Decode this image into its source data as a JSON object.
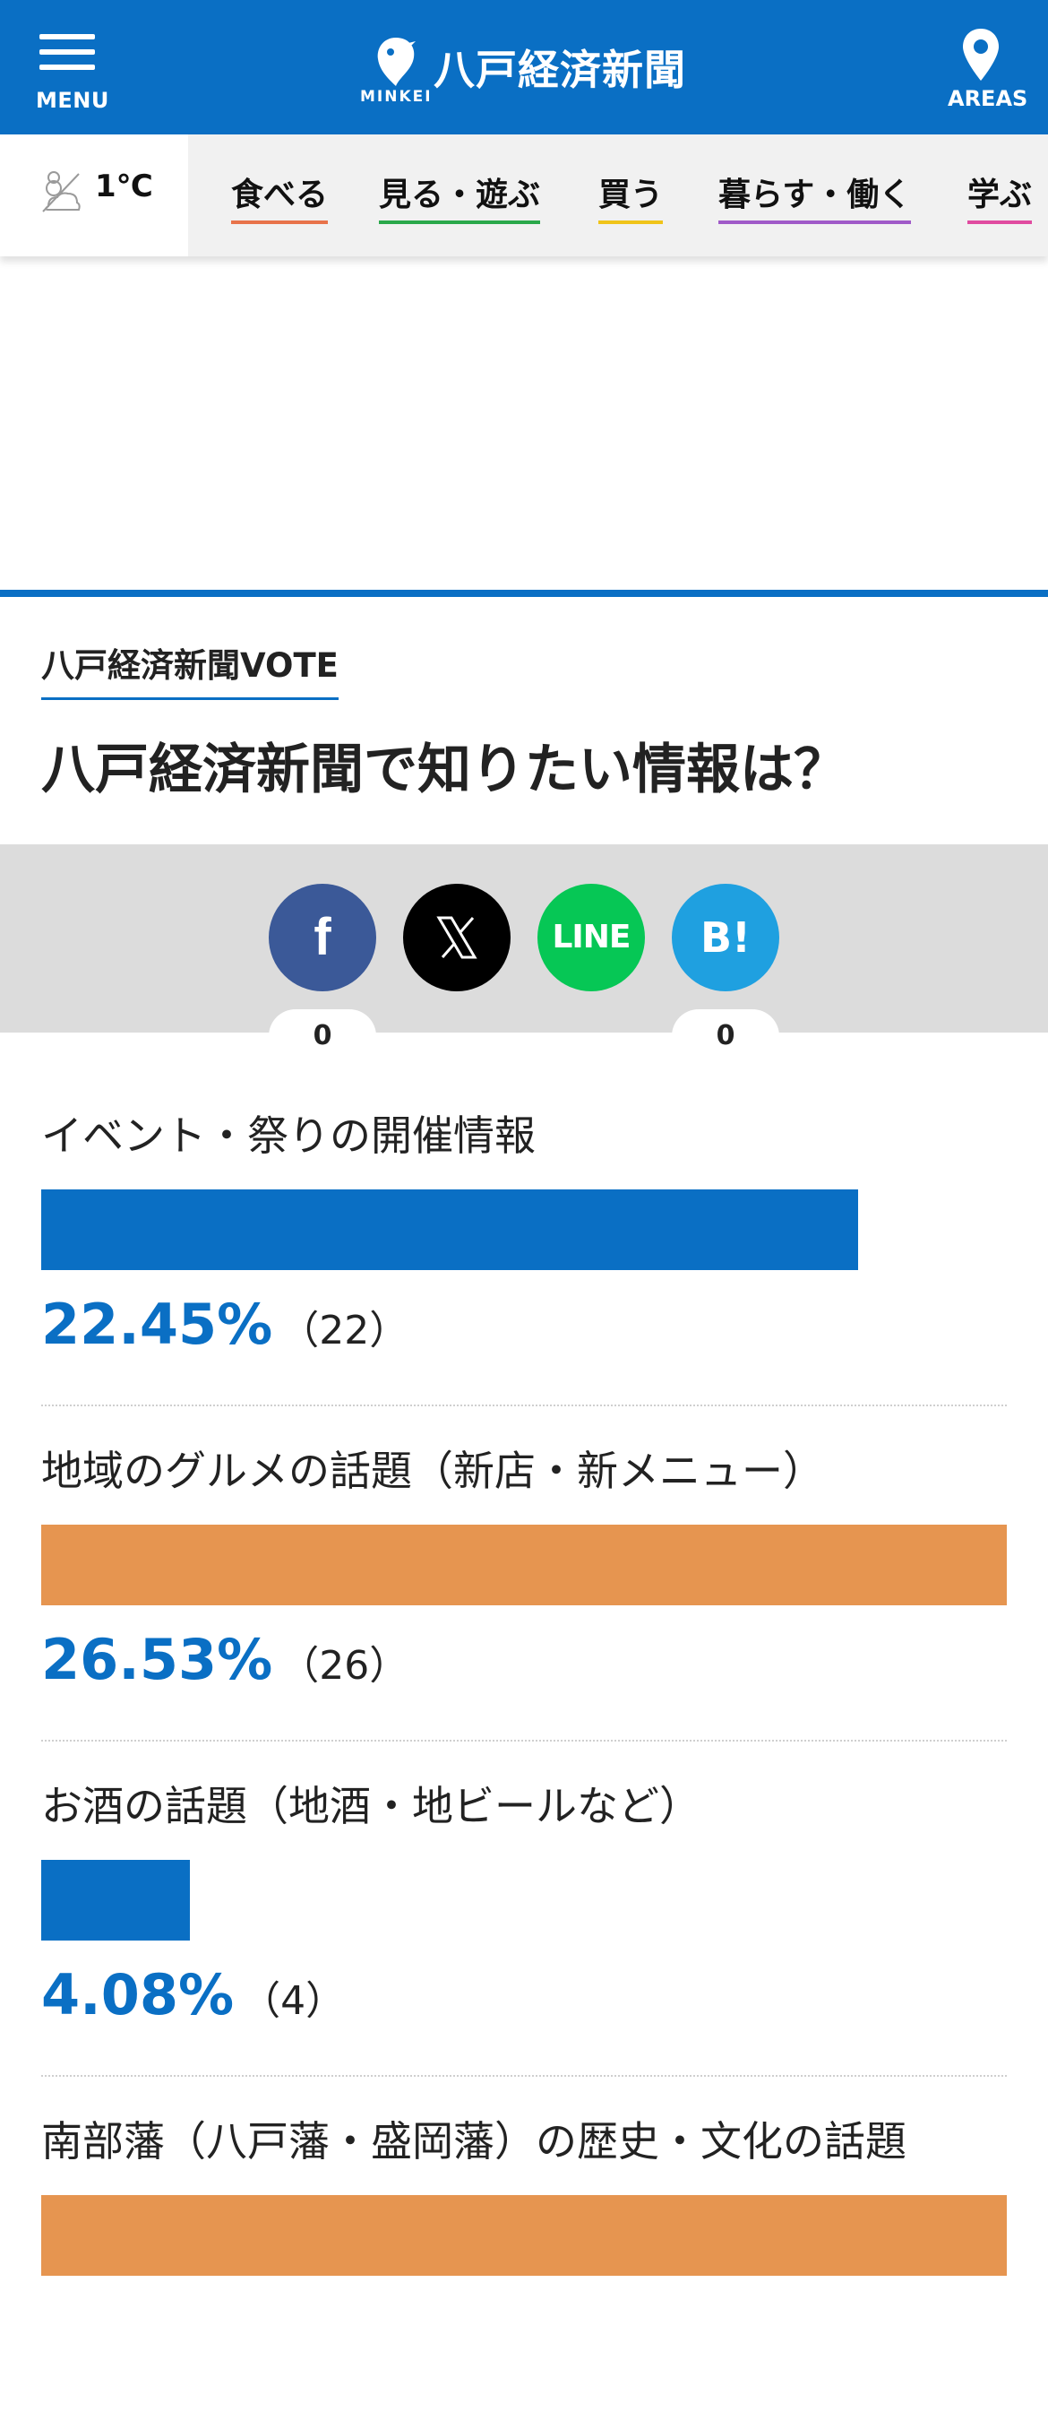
{
  "header": {
    "menu_label": "MENU",
    "logo_text": "八戸経済新聞",
    "logo_sub": "MINKEI",
    "areas_label": "AREAS",
    "brand_color": "#0a6fc4"
  },
  "weather": {
    "temp": "1℃",
    "icon": "snow-cloud-icon"
  },
  "categories": [
    {
      "label": "食べる",
      "color": "#e8734a"
    },
    {
      "label": "見る・遊ぶ",
      "color": "#2aa84a"
    },
    {
      "label": "買う",
      "color": "#f0c419"
    },
    {
      "label": "暮らす・働く",
      "color": "#a05ac8"
    },
    {
      "label": "学ぶ",
      "color": "#e04ba0"
    }
  ],
  "vote": {
    "label": "八戸経済新聞VOTE",
    "title": "八戸経済新聞で知りたい情報は？"
  },
  "share": {
    "facebook_label": "f",
    "x_label": "𝕏",
    "line_label": "LINE",
    "hatena_label": "B!",
    "facebook_count": "0",
    "hatena_count": "0"
  },
  "options": [
    {
      "label": "イベント・祭りの開催情報",
      "percent": "22.45%",
      "count": "（22）",
      "share": 22.45,
      "color": "#0a6fc4"
    },
    {
      "label": "地域のグルメの話題（新店・新メニュー）",
      "percent": "26.53%",
      "count": "（26）",
      "share": 26.53,
      "color": "#e69550"
    },
    {
      "label": "お酒の話題（地酒・地ビールなど）",
      "percent": "4.08%",
      "count": "（4）",
      "share": 4.08,
      "color": "#0a6fc4"
    },
    {
      "label": "南部藩（八戸藩・盛岡藩）の歴史・文化の話題",
      "percent": "",
      "count": "",
      "share": 26.53,
      "color": "#e69550"
    }
  ]
}
